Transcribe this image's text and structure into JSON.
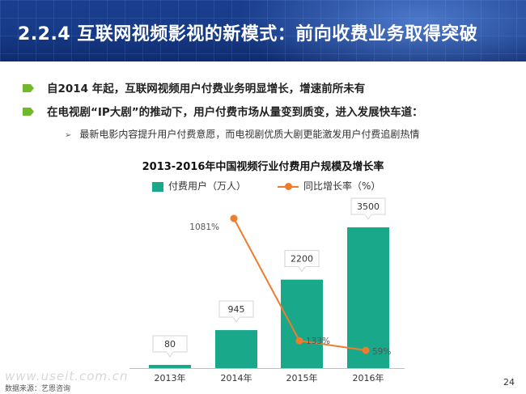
{
  "header": {
    "title": "2.2.4 互联网视频影视的新模式：前向收费业务取得突破"
  },
  "bullets": [
    "自2014 年起，互联网视频用户付费业务明显增长，增速前所未有",
    "在电视剧“IP大剧”的推动下，用户付费市场从量变到质变，进入发展快车道："
  ],
  "sub_bullet": "最新电影内容提升用户付费意愿，而电视剧优质大剧更能激发用户付费追剧热情",
  "colors": {
    "header": "#163a86",
    "bar": "#1aa88a",
    "line": "#ef7b2d",
    "bullet_tag": "#72b82b"
  },
  "chart_data": {
    "type": "bar",
    "title": "2013-2016年中国视频行业付费用户规模及增长率",
    "categories": [
      "2013年",
      "2014年",
      "2015年",
      "2016年"
    ],
    "series": [
      {
        "name": "付费用户（万人）",
        "type": "bar",
        "values": [
          80,
          945,
          2200,
          3500
        ],
        "labels": [
          "80",
          "945",
          "2200",
          "3500"
        ]
      },
      {
        "name": "同比增长率（%）",
        "type": "line",
        "values": [
          null,
          1081,
          133,
          59
        ],
        "labels": [
          "",
          "1081%",
          "133%",
          "59%"
        ]
      }
    ],
    "legend_position": "top",
    "grid": false
  },
  "footer": {
    "source": "数据来源：艺恩咨询",
    "watermark": "www.useit.com.cn",
    "page": "24"
  }
}
